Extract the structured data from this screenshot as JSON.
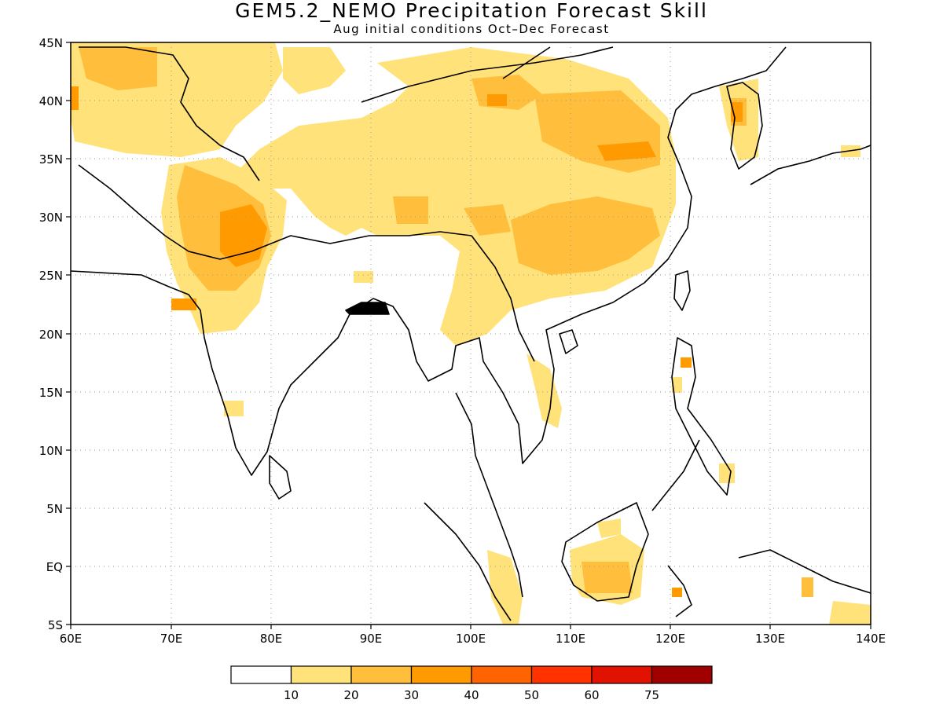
{
  "title": "GEM5.2_NEMO Precipitation Forecast Skill",
  "subtitle": "Aug initial conditions  Oct–Dec Forecast",
  "map": {
    "lon_range": [
      60,
      140
    ],
    "lat_range": [
      -5,
      45
    ],
    "lon_ticks": [
      "60E",
      "70E",
      "80E",
      "90E",
      "100E",
      "110E",
      "120E",
      "130E",
      "140E"
    ],
    "lat_ticks": [
      "45N",
      "40N",
      "35N",
      "30N",
      "25N",
      "20N",
      "15N",
      "10N",
      "5N",
      "EQ",
      "5S"
    ],
    "grid": "dotted"
  },
  "colorbar": {
    "colors": [
      "#ffffff",
      "#ffe27a",
      "#ffbe3c",
      "#ff9a00",
      "#ff6400",
      "#ff3200",
      "#e21200",
      "#a00000"
    ],
    "labels": [
      "10",
      "20",
      "30",
      "40",
      "50",
      "60",
      "75"
    ]
  }
}
